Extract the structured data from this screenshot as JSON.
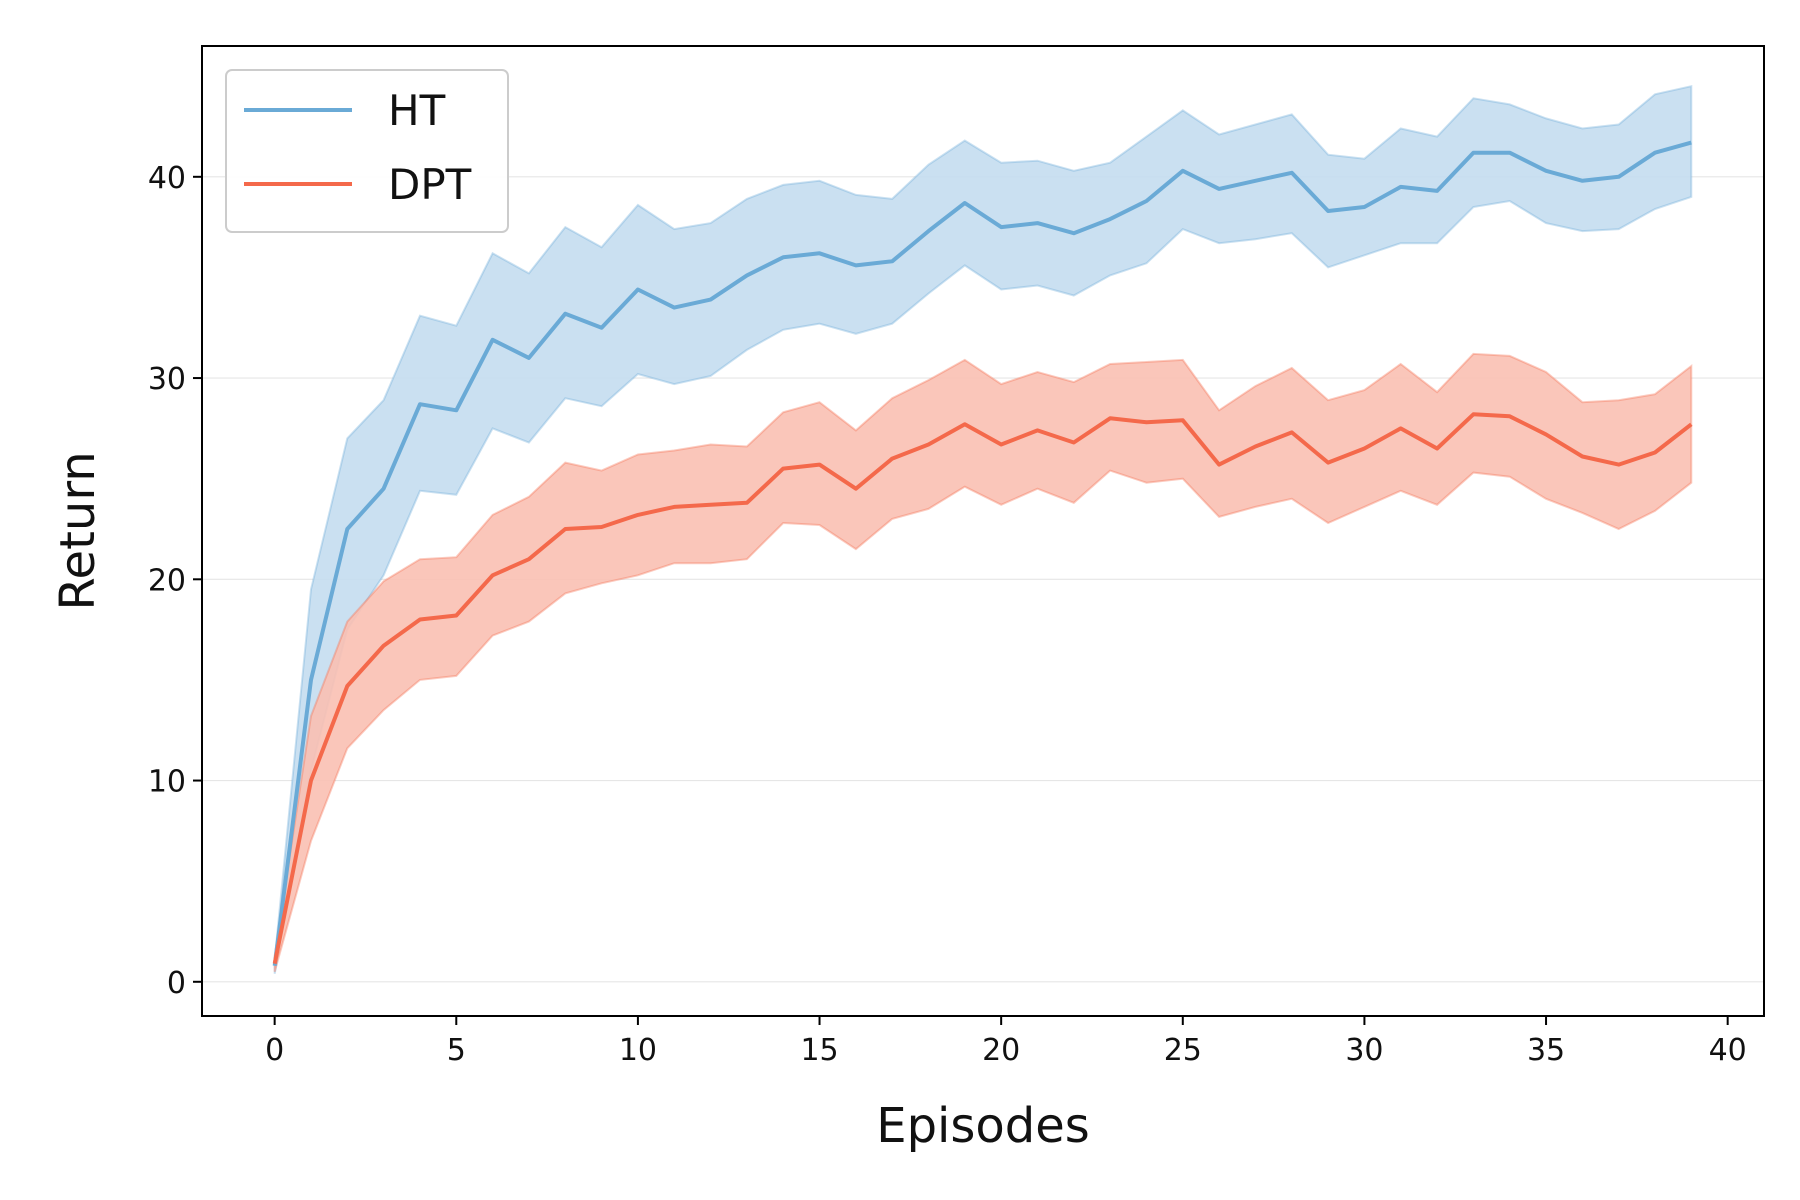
{
  "chart_data": {
    "type": "line",
    "xlabel": "Episodes",
    "ylabel": "Return",
    "xlim": [
      -2,
      41
    ],
    "ylim": [
      -1.7,
      46.5
    ],
    "xticks": [
      0,
      5,
      10,
      15,
      20,
      25,
      30,
      35,
      40
    ],
    "yticks": [
      0,
      10,
      20,
      30,
      40
    ],
    "grid": "horizontal",
    "legend_position": "top-left",
    "x": [
      0,
      1,
      2,
      3,
      4,
      5,
      6,
      7,
      8,
      9,
      10,
      11,
      12,
      13,
      14,
      15,
      16,
      17,
      18,
      19,
      20,
      21,
      22,
      23,
      24,
      25,
      26,
      27,
      28,
      29,
      30,
      31,
      32,
      33,
      34,
      35,
      36,
      37,
      38,
      39
    ],
    "series": [
      {
        "name": "HT",
        "color": "#6aaad6",
        "fill_color": "#c4ddef",
        "values": [
          0.8,
          15.0,
          22.5,
          24.5,
          28.7,
          28.4,
          31.9,
          31.0,
          33.2,
          32.5,
          34.4,
          33.5,
          33.9,
          35.1,
          36.0,
          36.2,
          35.6,
          35.8,
          37.3,
          38.7,
          37.5,
          37.7,
          37.2,
          37.9,
          38.8,
          40.3,
          39.4,
          39.8,
          40.2,
          38.3,
          38.5,
          39.5,
          39.3,
          41.2,
          41.2,
          40.3,
          39.8,
          40.0,
          41.2,
          41.7
        ],
        "lower": [
          0.4,
          10.5,
          17.5,
          20.2,
          24.4,
          24.2,
          27.5,
          26.8,
          29.0,
          28.6,
          30.2,
          29.7,
          30.1,
          31.4,
          32.4,
          32.7,
          32.2,
          32.7,
          34.2,
          35.6,
          34.4,
          34.6,
          34.1,
          35.1,
          35.7,
          37.4,
          36.7,
          36.9,
          37.2,
          35.5,
          36.1,
          36.7,
          36.7,
          38.5,
          38.8,
          37.7,
          37.3,
          37.4,
          38.4,
          39.0
        ],
        "upper": [
          1.1,
          19.5,
          27.0,
          28.9,
          33.1,
          32.6,
          36.2,
          35.2,
          37.5,
          36.5,
          38.6,
          37.4,
          37.7,
          38.9,
          39.6,
          39.8,
          39.1,
          38.9,
          40.6,
          41.8,
          40.7,
          40.8,
          40.3,
          40.7,
          42.0,
          43.3,
          42.1,
          42.6,
          43.1,
          41.1,
          40.9,
          42.4,
          42.0,
          43.9,
          43.6,
          42.9,
          42.4,
          42.6,
          44.1,
          44.5
        ]
      },
      {
        "name": "DPT",
        "color": "#f4694b",
        "fill_color": "#f9c0b2",
        "values": [
          0.9,
          10.0,
          14.7,
          16.7,
          18.0,
          18.2,
          20.2,
          21.0,
          22.5,
          22.6,
          23.2,
          23.6,
          23.7,
          23.8,
          25.5,
          25.7,
          24.5,
          26.0,
          26.7,
          27.7,
          26.7,
          27.4,
          26.8,
          28.0,
          27.8,
          27.9,
          25.7,
          26.6,
          27.3,
          25.8,
          26.5,
          27.5,
          26.5,
          28.2,
          28.1,
          27.2,
          26.1,
          25.7,
          26.3,
          27.7
        ],
        "lower": [
          0.5,
          7.0,
          11.6,
          13.5,
          15.0,
          15.2,
          17.2,
          17.9,
          19.3,
          19.8,
          20.2,
          20.8,
          20.8,
          21.0,
          22.8,
          22.7,
          21.5,
          23.0,
          23.5,
          24.6,
          23.7,
          24.5,
          23.8,
          25.4,
          24.8,
          25.0,
          23.1,
          23.6,
          24.0,
          22.8,
          23.6,
          24.4,
          23.7,
          25.3,
          25.1,
          24.0,
          23.3,
          22.5,
          23.4,
          24.8
        ],
        "upper": [
          1.3,
          13.2,
          17.9,
          19.9,
          21.0,
          21.1,
          23.2,
          24.1,
          25.8,
          25.4,
          26.2,
          26.4,
          26.7,
          26.6,
          28.3,
          28.8,
          27.4,
          29.0,
          29.9,
          30.9,
          29.7,
          30.3,
          29.8,
          30.7,
          30.8,
          30.9,
          28.4,
          29.6,
          30.5,
          28.9,
          29.4,
          30.7,
          29.3,
          31.2,
          31.1,
          30.3,
          28.8,
          28.9,
          29.2,
          30.6
        ]
      }
    ]
  }
}
